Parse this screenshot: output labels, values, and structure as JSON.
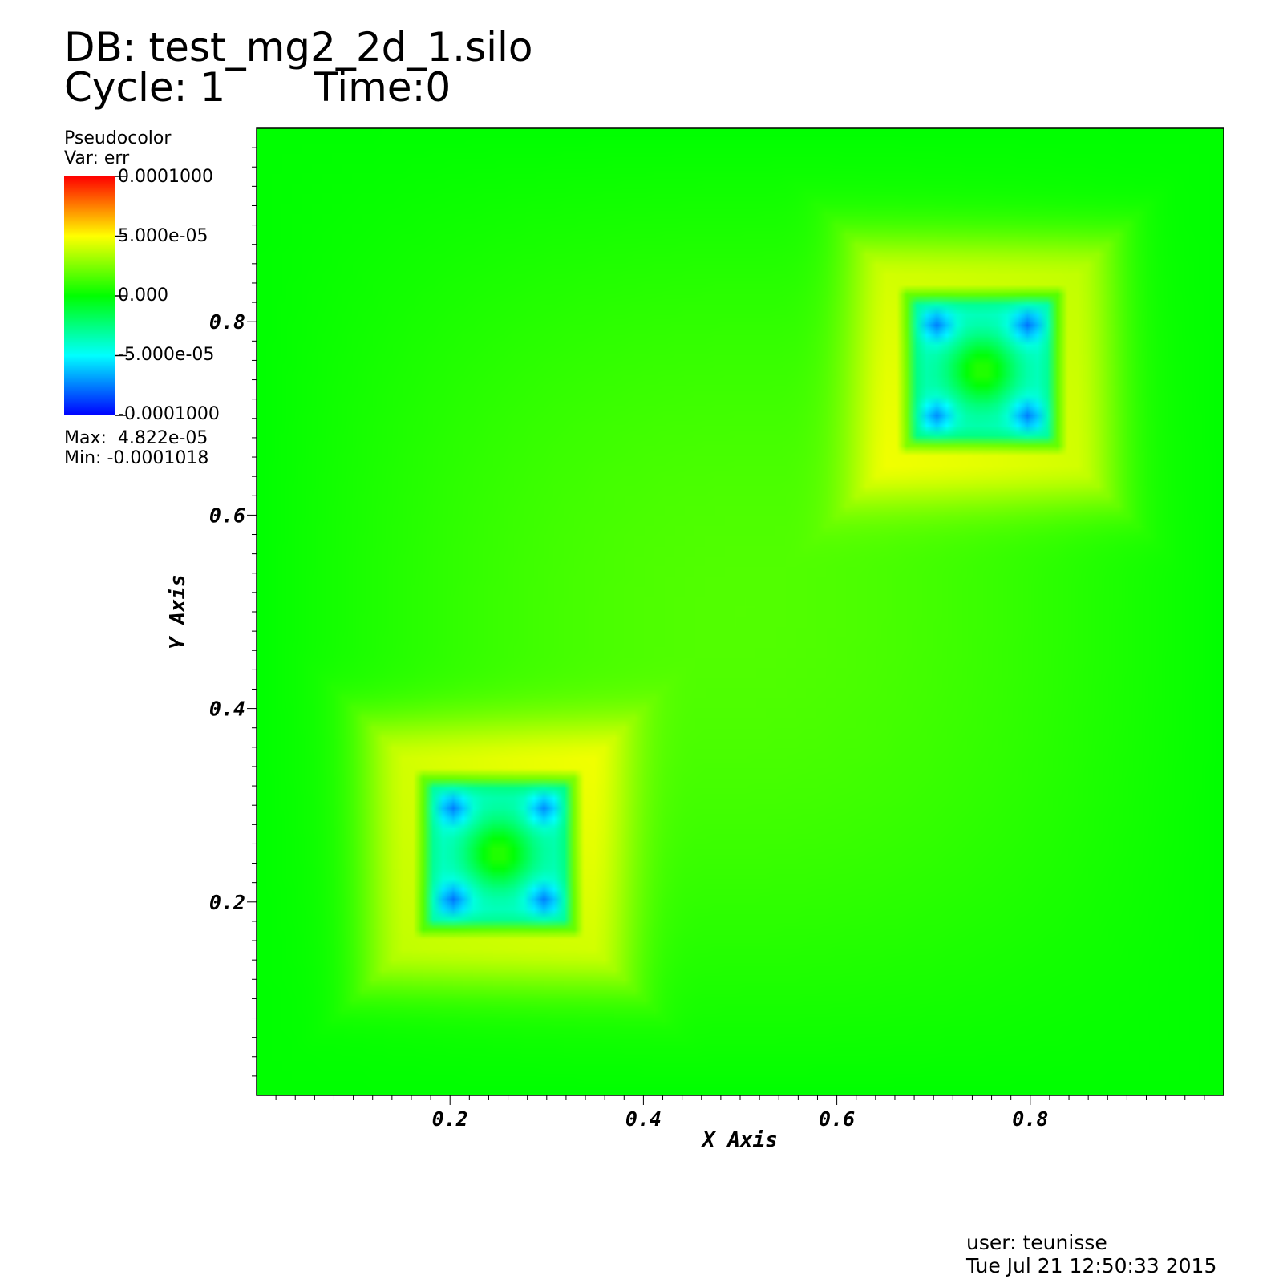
{
  "header": {
    "db_line": "DB: test_mg2_2d_1.silo",
    "cycle_label": "Cycle: 1",
    "time_label": "Time:0"
  },
  "legend": {
    "plot_type": "Pseudocolor",
    "var_label": "Var: err",
    "colorbar_labels": [
      "0.0001000",
      "5.000e-05",
      "0.000",
      "-5.000e-05",
      "-0.0001000"
    ],
    "max_label": "Max:  4.822e-05",
    "min_label": "Min: -0.0001018",
    "colors": [
      "#ff0000",
      "#ffff00",
      "#00ff00",
      "#00ffff",
      "#0000ff"
    ]
  },
  "footer": {
    "user": "user: teunisse",
    "date": "Tue Jul 21 12:50:33 2015"
  },
  "chart_data": {
    "type": "heatmap",
    "variable": "err",
    "xlabel": "X Axis",
    "ylabel": "Y Axis",
    "xlim": [
      0,
      1
    ],
    "ylim": [
      0,
      1
    ],
    "x_ticks": [
      0.2,
      0.4,
      0.6,
      0.8
    ],
    "y_ticks": [
      0.2,
      0.4,
      0.6,
      0.8
    ],
    "x_tick_labels": [
      "0.2",
      "0.4",
      "0.6",
      "0.8"
    ],
    "y_tick_labels": [
      "0.2",
      "0.4",
      "0.6",
      "0.8"
    ],
    "color_range": [
      -0.0001,
      0.0001
    ],
    "data_max": 4.822e-05,
    "data_min": -0.0001018,
    "background_value": 0.0,
    "features": [
      {
        "center": [
          0.25,
          0.25
        ],
        "half_width": 0.085,
        "ring_value": -5.5e-05,
        "core_value": 0.0,
        "halo_value": 3.5e-05
      },
      {
        "center": [
          0.75,
          0.75
        ],
        "half_width": 0.085,
        "ring_value": -5.5e-05,
        "core_value": 0.0,
        "halo_value": 3.5e-05
      }
    ]
  }
}
